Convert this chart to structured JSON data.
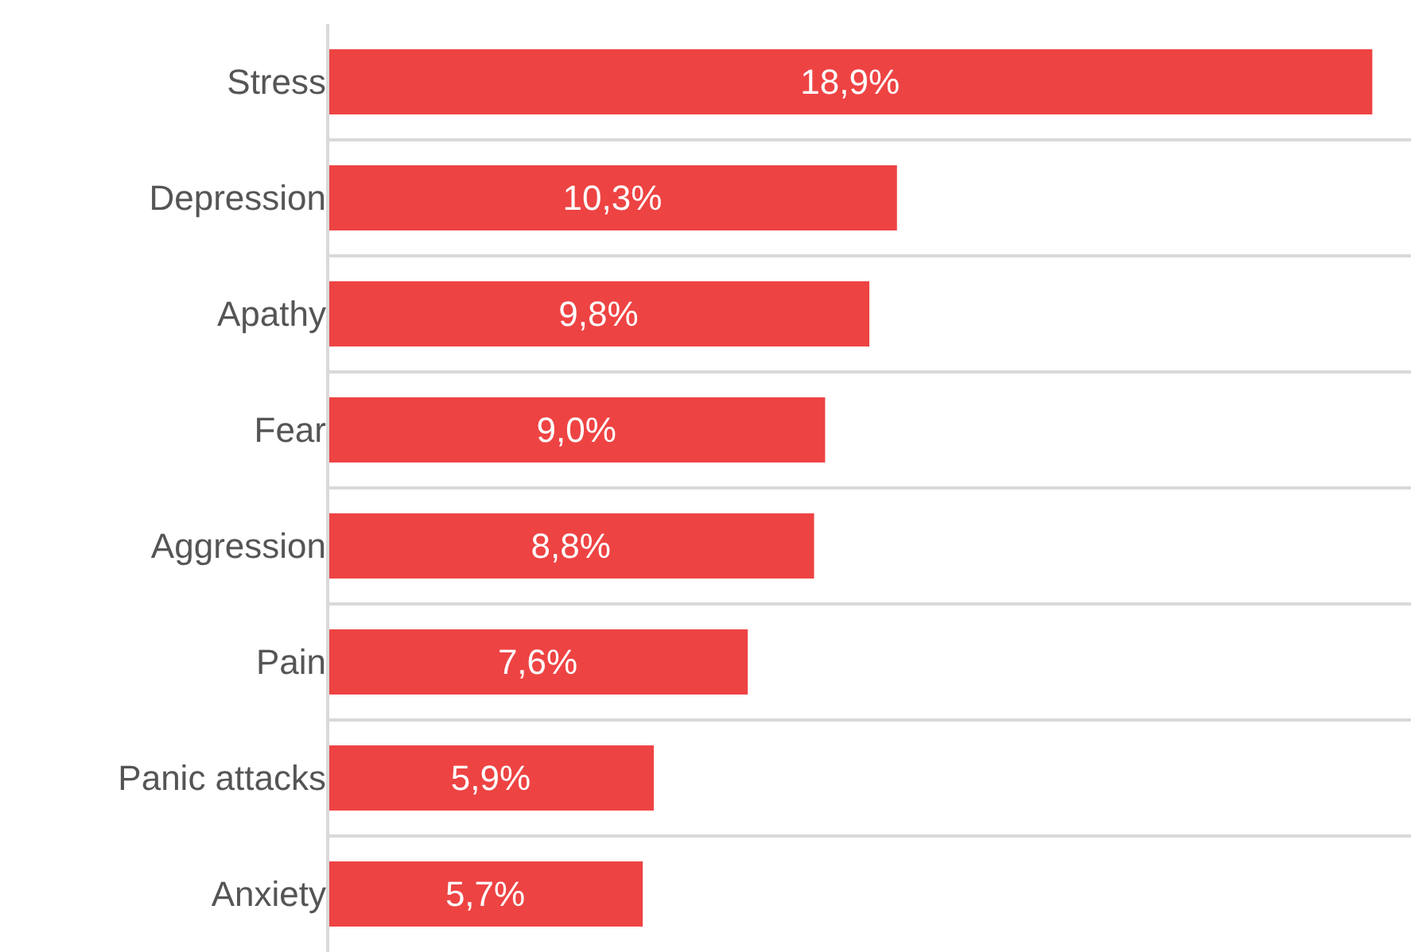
{
  "chart_data": {
    "type": "bar",
    "orientation": "horizontal",
    "categories": [
      "Stress",
      "Depression",
      "Apathy",
      "Fear",
      "Aggression",
      "Pain",
      "Panic attacks",
      "Anxiety"
    ],
    "values": [
      18.9,
      10.3,
      9.8,
      9.0,
      8.8,
      7.6,
      5.9,
      5.7
    ],
    "value_labels": [
      "18,9%",
      "10,3%",
      "9,8%",
      "9,0%",
      "8,8%",
      "7,6%",
      "5,9%",
      "5,7%"
    ],
    "color": "#ee4343",
    "xlim": [
      0,
      19.6
    ],
    "grid": "y",
    "legend": false,
    "tick_labels": "y"
  }
}
